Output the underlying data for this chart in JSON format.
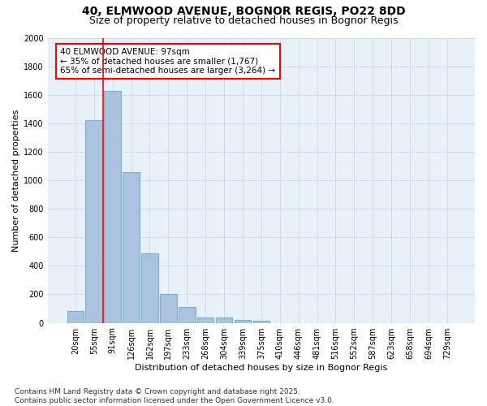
{
  "title_line1": "40, ELMWOOD AVENUE, BOGNOR REGIS, PO22 8DD",
  "title_line2": "Size of property relative to detached houses in Bognor Regis",
  "xlabel": "Distribution of detached houses by size in Bognor Regis",
  "ylabel": "Number of detached properties",
  "categories": [
    "20sqm",
    "55sqm",
    "91sqm",
    "126sqm",
    "162sqm",
    "197sqm",
    "233sqm",
    "268sqm",
    "304sqm",
    "339sqm",
    "375sqm",
    "410sqm",
    "446sqm",
    "481sqm",
    "516sqm",
    "552sqm",
    "587sqm",
    "623sqm",
    "658sqm",
    "694sqm",
    "729sqm"
  ],
  "bar_values": [
    85,
    1420,
    1625,
    1055,
    490,
    205,
    110,
    40,
    35,
    20,
    15,
    0,
    0,
    0,
    0,
    0,
    0,
    0,
    0,
    0,
    0
  ],
  "bar_color": "#aac4e0",
  "bar_edgecolor": "#7aafd4",
  "grid_color": "#c8ddf0",
  "background_color": "#e8f0f8",
  "vline_x": 1.5,
  "vline_color": "red",
  "annotation_text": "40 ELMWOOD AVENUE: 97sqm\n← 35% of detached houses are smaller (1,767)\n65% of semi-detached houses are larger (3,264) →",
  "annotation_box_color": "red",
  "ylim": [
    0,
    2000
  ],
  "yticks": [
    0,
    200,
    400,
    600,
    800,
    1000,
    1200,
    1400,
    1600,
    1800,
    2000
  ],
  "footnote": "Contains HM Land Registry data © Crown copyright and database right 2025.\nContains public sector information licensed under the Open Government Licence v3.0.",
  "title_fontsize": 10,
  "subtitle_fontsize": 9,
  "axis_label_fontsize": 8,
  "tick_fontsize": 7,
  "annotation_fontsize": 7.5,
  "footnote_fontsize": 6.5
}
